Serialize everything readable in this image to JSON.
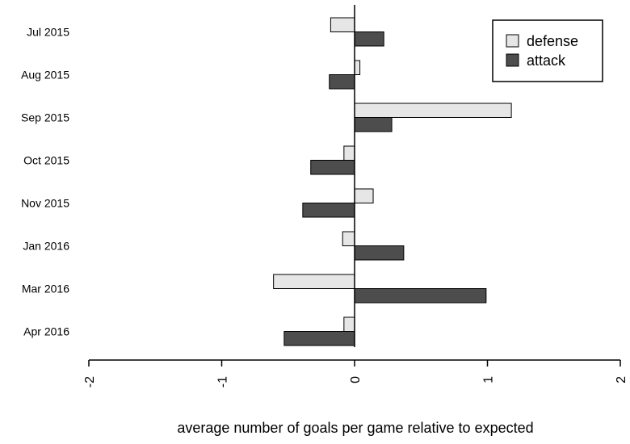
{
  "chart_data": {
    "type": "bar",
    "orientation": "horizontal",
    "categories": [
      "Jul 2015",
      "Aug 2015",
      "Sep 2015",
      "Oct 2015",
      "Nov 2015",
      "Jan 2016",
      "Mar 2016",
      "Apr 2016"
    ],
    "series": [
      {
        "name": "defense",
        "color": "#e6e6e6",
        "values": [
          -0.18,
          0.04,
          1.18,
          -0.08,
          0.14,
          -0.09,
          -0.61,
          -0.08
        ]
      },
      {
        "name": "attack",
        "color": "#4d4d4d",
        "values": [
          0.22,
          -0.19,
          0.28,
          -0.33,
          -0.39,
          0.37,
          0.99,
          -0.53
        ]
      }
    ],
    "title": "",
    "xlabel": "average number of goals per game relative to expected",
    "ylabel": "",
    "xlim": [
      -2,
      2
    ],
    "xticks": [
      "-2",
      "-1",
      "0",
      "1",
      "2"
    ],
    "xtick_values": [
      -2,
      -1,
      0,
      1,
      2
    ],
    "legend_position": "top-right",
    "grid": false
  }
}
